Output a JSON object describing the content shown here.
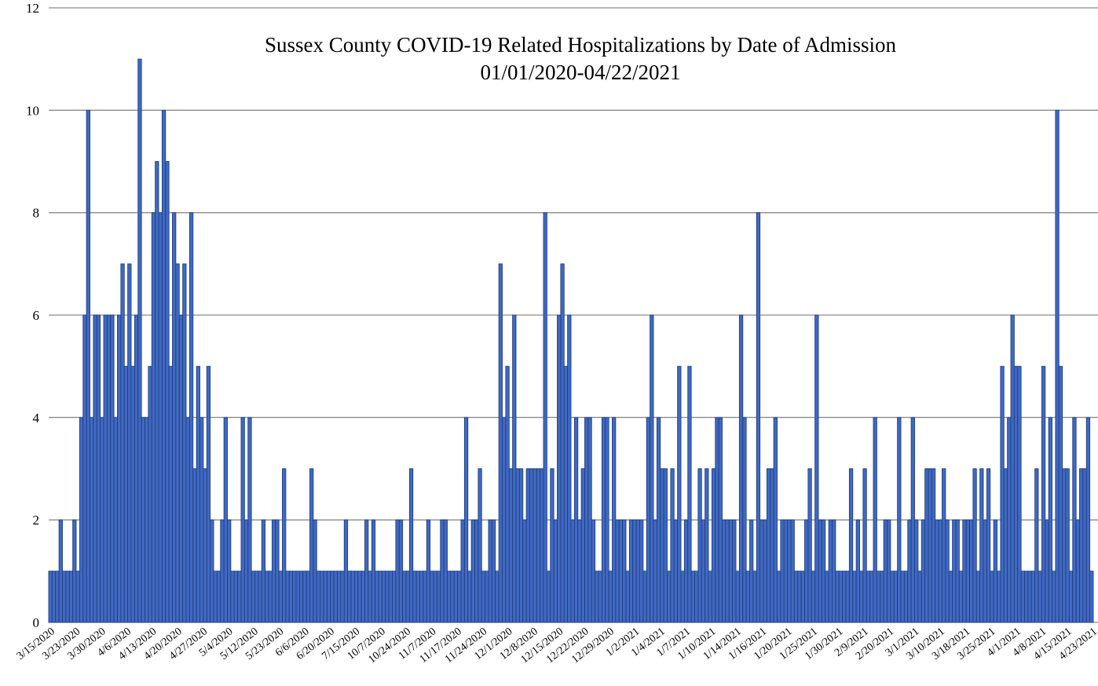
{
  "chart_data": {
    "type": "bar",
    "title": "Sussex County COVID-19 Related Hospitalizations by Date of Admission",
    "subtitle": "01/01/2020-04/22/2021",
    "xlabel": "",
    "ylabel": "",
    "ylim": [
      0,
      12
    ],
    "yticks": [
      0,
      2,
      4,
      6,
      8,
      10,
      12
    ],
    "grid": true,
    "legend": "none",
    "bar_color": "#4169c1",
    "x_tick_labels": [
      "3/15/2020",
      "3/23/2020",
      "3/30/2020",
      "4/6/2020",
      "4/13/2020",
      "4/20/2020",
      "4/27/2020",
      "5/4/2020",
      "5/12/2020",
      "5/23/2020",
      "6/6/2020",
      "6/20/2020",
      "7/15/2020",
      "10/7/2020",
      "10/24/2020",
      "11/7/2020",
      "11/17/2020",
      "11/24/2020",
      "12/1/2020",
      "12/8/2020",
      "12/15/2020",
      "12/22/2020",
      "12/29/2020",
      "1/2/2021",
      "1/4/2021",
      "1/7/2021",
      "1/10/2021",
      "1/14/2021",
      "1/16/2021",
      "1/20/2021",
      "1/25/2021",
      "1/30/2021",
      "2/9/2021",
      "2/20/2021",
      "3/1/2021",
      "3/10/2021",
      "3/18/2021",
      "3/25/2021",
      "4/1/2021",
      "4/8/2021",
      "4/15/2021",
      "4/23/2021"
    ],
    "values": [
      1,
      1,
      1,
      2,
      1,
      1,
      1,
      2,
      1,
      4,
      6,
      10,
      4,
      6,
      6,
      4,
      6,
      6,
      6,
      4,
      6,
      7,
      5,
      7,
      5,
      6,
      11,
      4,
      4,
      5,
      8,
      9,
      8,
      10,
      9,
      5,
      8,
      7,
      6,
      7,
      4,
      8,
      3,
      5,
      4,
      3,
      5,
      2,
      1,
      1,
      2,
      4,
      2,
      1,
      1,
      1,
      4,
      2,
      4,
      1,
      1,
      1,
      2,
      1,
      1,
      2,
      2,
      1,
      3,
      1,
      1,
      1,
      1,
      1,
      1,
      1,
      3,
      2,
      1,
      1,
      1,
      1,
      1,
      1,
      1,
      1,
      2,
      1,
      1,
      1,
      1,
      1,
      2,
      1,
      2,
      1,
      1,
      1,
      1,
      1,
      1,
      2,
      2,
      1,
      1,
      3,
      1,
      1,
      1,
      1,
      2,
      1,
      1,
      1,
      2,
      2,
      1,
      1,
      1,
      1,
      2,
      4,
      1,
      2,
      2,
      3,
      1,
      1,
      2,
      2,
      1,
      7,
      4,
      5,
      3,
      6,
      3,
      3,
      2,
      3,
      3,
      3,
      3,
      3,
      8,
      1,
      3,
      2,
      6,
      7,
      5,
      6,
      2,
      4,
      2,
      3,
      4,
      4,
      2,
      1,
      1,
      4,
      4,
      1,
      4,
      2,
      2,
      2,
      1,
      2,
      2,
      2,
      2,
      1,
      4,
      6,
      2,
      4,
      3,
      3,
      1,
      3,
      2,
      5,
      1,
      2,
      5,
      1,
      1,
      3,
      2,
      3,
      1,
      3,
      4,
      4,
      2,
      2,
      2,
      2,
      1,
      6,
      4,
      1,
      2,
      1,
      8,
      2,
      2,
      3,
      3,
      4,
      1,
      2,
      2,
      2,
      2,
      1,
      1,
      1,
      2,
      3,
      1,
      6,
      2,
      2,
      1,
      2,
      2,
      1,
      1,
      1,
      1,
      3,
      1,
      2,
      1,
      3,
      1,
      1,
      4,
      1,
      1,
      2,
      2,
      1,
      1,
      4,
      1,
      1,
      2,
      4,
      2,
      1,
      2,
      3,
      3,
      3,
      2,
      2,
      3,
      2,
      1,
      2,
      2,
      1,
      2,
      2,
      2,
      3,
      1,
      3,
      2,
      3,
      1,
      2,
      1,
      5,
      3,
      4,
      6,
      5,
      5,
      1,
      1,
      1,
      1,
      3,
      1,
      5,
      2,
      4,
      1,
      10,
      5,
      3,
      3,
      1,
      4,
      2,
      3,
      3,
      4,
      1
    ]
  }
}
